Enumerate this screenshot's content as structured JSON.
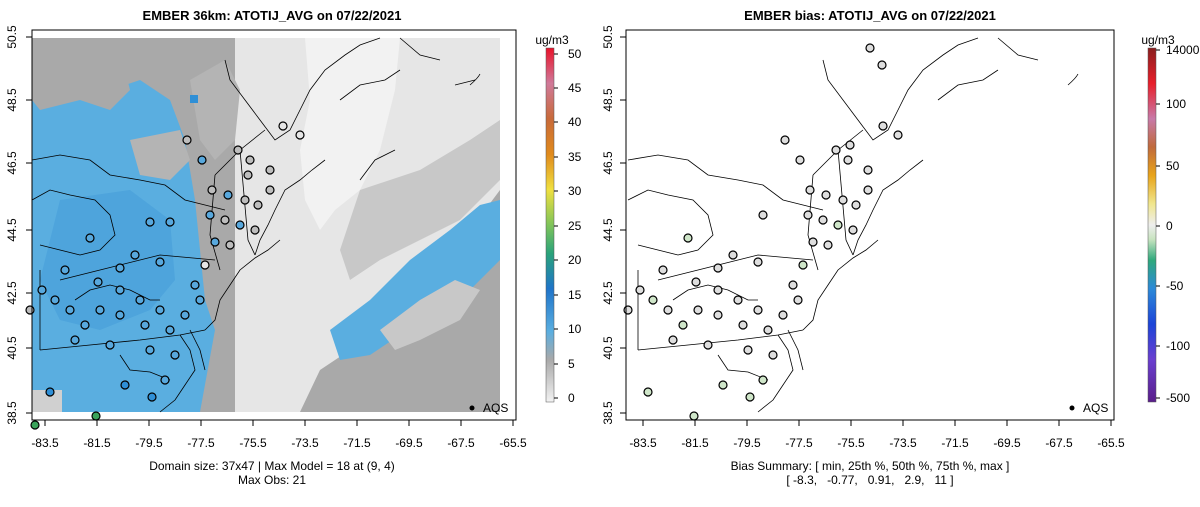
{
  "left_panel": {
    "title": "EMBER 36km: ATOTIJ_AVG on 07/22/2021",
    "x_ticks": [
      "-83.5",
      "-81.5",
      "-79.5",
      "-77.5",
      "-75.5",
      "-73.5",
      "-71.5",
      "-69.5",
      "-67.5",
      "-65.5"
    ],
    "y_ticks": [
      "38.5",
      "40.5",
      "42.5",
      "44.5",
      "46.5",
      "48.5",
      "50.5"
    ],
    "legend_label": "AQS",
    "colorbar_units": "ug/m3",
    "colorbar_ticks": [
      "0",
      "5",
      "10",
      "15",
      "20",
      "25",
      "30",
      "35",
      "40",
      "45",
      "50"
    ],
    "summary_line1": "Domain size: 37x47 | Max Model = 18 at (9, 4)",
    "summary_line2": "Max Obs: 21"
  },
  "right_panel": {
    "title": "EMBER bias: ATOTIJ_AVG on 07/22/2021",
    "x_ticks": [
      "-83.5",
      "-81.5",
      "-79.5",
      "-77.5",
      "-75.5",
      "-73.5",
      "-71.5",
      "-69.5",
      "-67.5",
      "-65.5"
    ],
    "y_ticks": [
      "38.5",
      "40.5",
      "42.5",
      "44.5",
      "46.5",
      "48.5",
      "50.5"
    ],
    "legend_label": "AQS",
    "colorbar_units": "ug/m3",
    "colorbar_ticks": [
      "-500",
      "-100",
      "-50",
      "0",
      "50",
      "100",
      "14000"
    ],
    "summary_line1": "Bias Summary: [ min, 25th %, 50th %, 75th %, max ]",
    "summary_line2": "[ -8.3,   -0.77,   0.91,   2.9,   11 ]"
  },
  "colors": {
    "grid_light": "#e6e6e6",
    "grid_mid": "#c8c8c8",
    "grid_dark": "#a9a9a9",
    "grid_blue": "#5aaee0",
    "grid_blue_dark": "#2f8fd6",
    "obs_blue": "#58a8dd",
    "obs_grey": "#bdbdbd",
    "obs_green": "#3aa35a",
    "bias_neutral": "#dedede",
    "bias_green": "#cfe6c9"
  }
}
